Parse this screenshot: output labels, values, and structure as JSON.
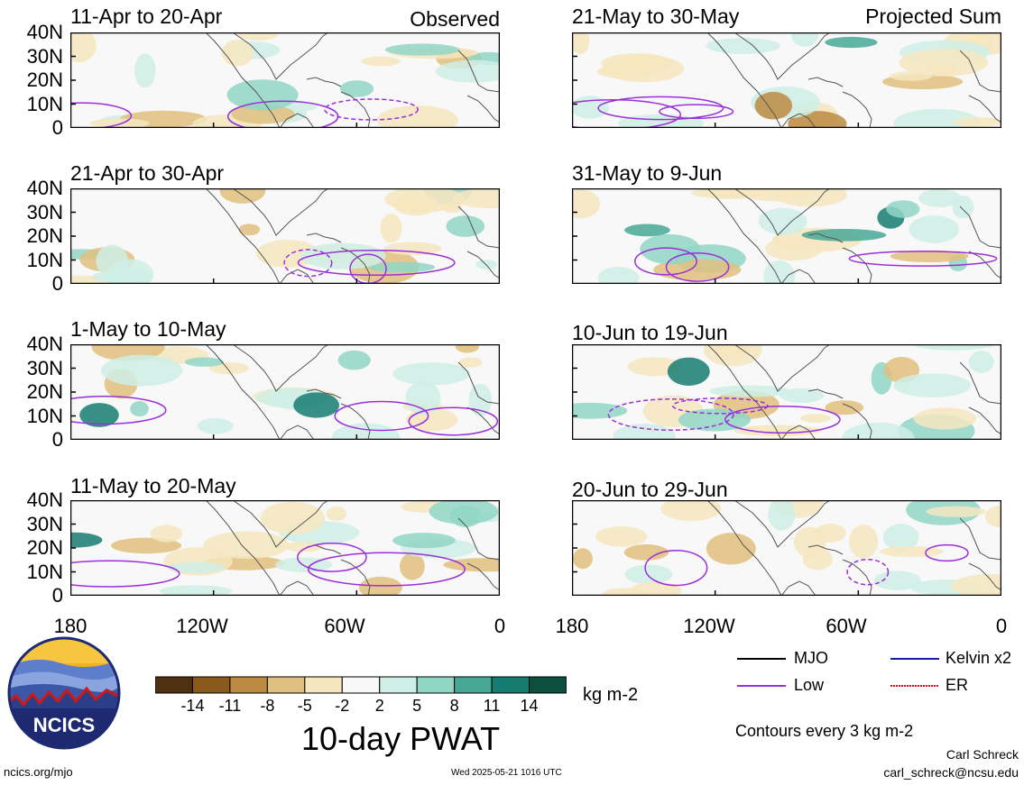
{
  "header": {
    "left_tag": "Observed",
    "right_tag": "Projected Sum"
  },
  "panels_left": [
    {
      "title": "11-Apr to 20-Apr"
    },
    {
      "title": "21-Apr to 30-Apr"
    },
    {
      "title": "1-May to 10-May"
    },
    {
      "title": "11-May to 20-May"
    }
  ],
  "panels_right": [
    {
      "title": "21-May to 30-May"
    },
    {
      "title": "31-May to 9-Jun"
    },
    {
      "title": "10-Jun to 19-Jun"
    },
    {
      "title": "20-Jun to 29-Jun"
    }
  ],
  "lat_labels": [
    "40N",
    "30N",
    "20N",
    "10N",
    "0"
  ],
  "lon_labels": [
    "180",
    "120W",
    "60W",
    "0"
  ],
  "colorbar": {
    "colors": [
      "#4f3010",
      "#8a5a1c",
      "#bc8a42",
      "#e0c07e",
      "#f6e6c0",
      "#f8f8f8",
      "#cfeee6",
      "#90d6c6",
      "#48a896",
      "#167c72",
      "#0c4e40"
    ],
    "tick_labels": [
      "-14",
      "-11",
      "-8",
      "-5",
      "-2",
      "2",
      "5",
      "8",
      "11",
      "14"
    ],
    "units": "kg m-2",
    "title": "10-day PWAT"
  },
  "legend": {
    "items": [
      {
        "label": "MJO",
        "color": "#000000"
      },
      {
        "label": "Kelvin x2",
        "color": "#1a1aa0"
      },
      {
        "label": "Low",
        "color": "#9b30d8"
      },
      {
        "label": "ER",
        "color": "#e01010"
      }
    ],
    "contours_note": "Contours every 3 kg m-2"
  },
  "logo": {
    "text": "NCICS"
  },
  "footer": {
    "url": "ncics.org/mjo",
    "timestamp": "Wed 2025-05-21 1016 UTC",
    "author": "Carl Schreck",
    "email": "carl_schreck@ncsu.edu"
  },
  "colors": {
    "low_contour": "#9b30d8",
    "land_border": "#555555",
    "dry": "#d8b070",
    "wet": "#48a896"
  }
}
